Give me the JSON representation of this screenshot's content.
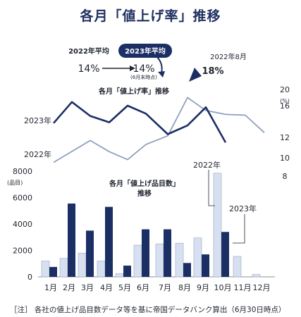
{
  "title": "各月「値上げ率」推移",
  "note": "［注］ 各社の値上げ品目数データ等を基に帝国データバンク算出（6月30日時点）",
  "annotations": {
    "avg2022_label": "2022年平均",
    "avg2022_value": "14%",
    "avg2023_label": "2023年平均",
    "avg2023_value": "14%",
    "avg2023_sub": "(6月末時点)",
    "peak_label": "2022年8月",
    "peak_value": "18%"
  },
  "chart_data": [
    {
      "type": "line",
      "title": "各月「値上げ率」推移",
      "categories": [
        "1月",
        "2月",
        "3月",
        "4月",
        "5月",
        "6月",
        "7月",
        "8月",
        "9月",
        "10月",
        "11月",
        "12月"
      ],
      "y_unit": "(%)",
      "yticks": [
        "20",
        "16",
        "12",
        "10",
        "8"
      ],
      "series": [
        {
          "name": "2023年",
          "values": [
            13.8,
            16.9,
            14.7,
            13.9,
            16.0,
            15.0,
            12.4,
            13.5,
            15.8,
            11.5,
            null,
            null
          ]
        },
        {
          "name": "2022年",
          "values": [
            9.5,
            null,
            11.7,
            10.6,
            9.8,
            11.3,
            12.2,
            18.0,
            15.4,
            14.9,
            14.8,
            12.6
          ]
        }
      ]
    },
    {
      "type": "bar",
      "title": "各月「値上げ品目数」推移",
      "y_unit": "(品目)",
      "ylim": [
        0,
        8000
      ],
      "yticks": [
        "0",
        "2000",
        "4000",
        "6000",
        "8000"
      ],
      "categories": [
        "1月",
        "2月",
        "3月",
        "4月",
        "5月",
        "6月",
        "7月",
        "8月",
        "9月",
        "10月",
        "11月",
        "12月"
      ],
      "series": [
        {
          "name": "2022年",
          "values": [
            1200,
            1400,
            1800,
            1200,
            250,
            2400,
            2500,
            2550,
            2950,
            7850,
            1550,
            180
          ]
        },
        {
          "name": "2023年",
          "values": [
            750,
            5550,
            3500,
            5300,
            850,
            3600,
            3600,
            1050,
            1700,
            3400,
            null,
            null
          ]
        }
      ]
    }
  ],
  "colors": {
    "y2022": "#8ea0bf",
    "y2023": "#1c2f64",
    "bar2022": "#d6e0f1"
  }
}
